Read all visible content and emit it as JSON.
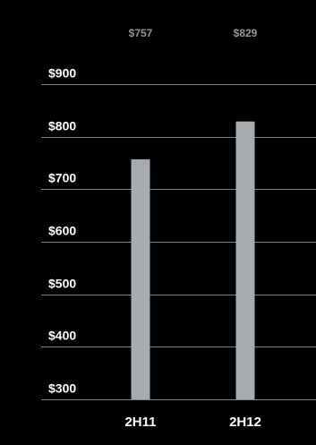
{
  "chart_data": {
    "type": "bar",
    "title": "",
    "xlabel": "",
    "ylabel": "",
    "categories": [
      "2H11",
      "2H12"
    ],
    "values": [
      757,
      829
    ],
    "value_labels": [
      "$757",
      "$829"
    ],
    "ylim": [
      300,
      900
    ],
    "yticks": [
      900,
      800,
      700,
      600,
      500,
      400,
      300
    ],
    "ytick_labels": [
      "$900",
      "$800",
      "$700",
      "$600",
      "$500",
      "$400",
      "$300"
    ],
    "grid": true,
    "bar_color": "#a5abaf",
    "label_color": "#8f959a",
    "background": "#000000",
    "grid_color": "#7d8287"
  }
}
